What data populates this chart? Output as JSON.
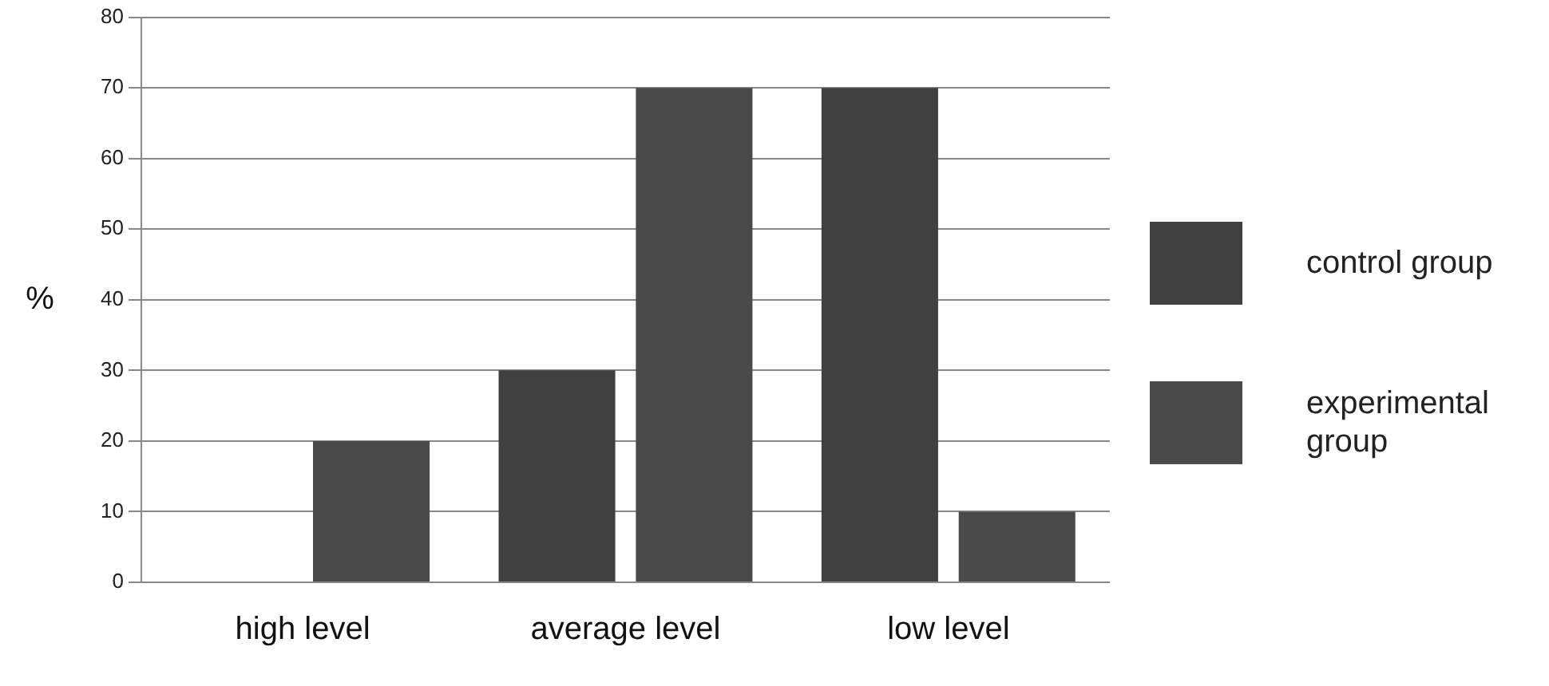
{
  "chart_data": {
    "type": "bar",
    "ylabel": "%",
    "categories": [
      "high level",
      "average level",
      "low level"
    ],
    "series": [
      {
        "name": "control group",
        "color": "#404040",
        "values": [
          0,
          30,
          70
        ]
      },
      {
        "name": "experimental group",
        "color": "#4a4a4a",
        "values": [
          20,
          70,
          10
        ]
      }
    ],
    "ylim": [
      0,
      80
    ],
    "yticks": [
      0,
      10,
      20,
      30,
      40,
      50,
      60,
      70,
      80
    ],
    "grid": "y",
    "legend": "right"
  }
}
